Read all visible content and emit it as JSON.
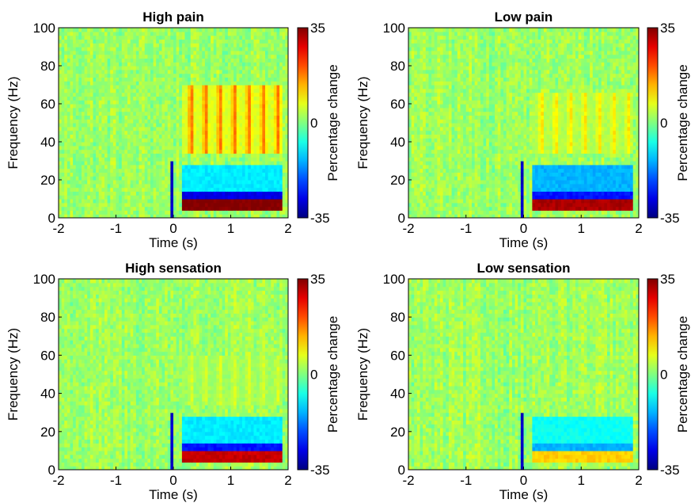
{
  "chart_data": [
    {
      "type": "heatmap",
      "title": "High pain",
      "xlabel": "Time (s)",
      "ylabel": "Frequency (Hz)",
      "xlim": [
        -2,
        2
      ],
      "ylim": [
        0,
        100
      ],
      "xticks": [
        -2,
        -1,
        0,
        1,
        2
      ],
      "yticks": [
        0,
        20,
        40,
        60,
        80,
        100
      ],
      "colorbar": {
        "label": "Percentage change",
        "range": [
          -35,
          35
        ],
        "ticks": [
          35,
          0,
          -35
        ],
        "colormap": "jet"
      },
      "features": [
        {
          "description": "strong increase",
          "time_range": [
            0.15,
            1.9
          ],
          "freq_range": [
            4,
            9
          ],
          "value": 35
        },
        {
          "description": "decrease band",
          "time_range": [
            0.15,
            1.9
          ],
          "freq_range": [
            10,
            14
          ],
          "value": -28
        },
        {
          "description": "gamma bursts",
          "time_range": [
            0.15,
            1.9
          ],
          "freq_range": [
            35,
            70
          ],
          "value": 18
        },
        {
          "description": "alpha/beta decrease",
          "time_range": [
            0.15,
            1.9
          ],
          "freq_range": [
            15,
            28
          ],
          "value": -10
        },
        {
          "description": "onset artifact",
          "time_range": [
            -0.05,
            0.0
          ],
          "freq_range": [
            0,
            30
          ],
          "value": -30
        }
      ]
    },
    {
      "type": "heatmap",
      "title": "Low pain",
      "xlabel": "Time (s)",
      "ylabel": "Frequency (Hz)",
      "xlim": [
        -2,
        2
      ],
      "ylim": [
        0,
        100
      ],
      "xticks": [
        -2,
        -1,
        0,
        1,
        2
      ],
      "yticks": [
        0,
        20,
        40,
        60,
        80,
        100
      ],
      "colorbar": {
        "label": "Percentage change",
        "range": [
          -35,
          35
        ],
        "ticks": [
          35,
          0,
          -35
        ],
        "colormap": "jet"
      },
      "features": [
        {
          "description": "strong increase",
          "time_range": [
            0.15,
            1.9
          ],
          "freq_range": [
            4,
            9
          ],
          "value": 32
        },
        {
          "description": "decrease band",
          "time_range": [
            0.15,
            1.9
          ],
          "freq_range": [
            10,
            14
          ],
          "value": -25
        },
        {
          "description": "gamma bursts",
          "time_range": [
            0.15,
            1.9
          ],
          "freq_range": [
            35,
            65
          ],
          "value": 10
        },
        {
          "description": "alpha/beta decrease",
          "time_range": [
            0.15,
            1.9
          ],
          "freq_range": [
            15,
            28
          ],
          "value": -14
        },
        {
          "description": "onset artifact",
          "time_range": [
            -0.05,
            0.0
          ],
          "freq_range": [
            0,
            30
          ],
          "value": -30
        }
      ]
    },
    {
      "type": "heatmap",
      "title": "High sensation",
      "xlabel": "Time (s)",
      "ylabel": "Frequency (Hz)",
      "xlim": [
        -2,
        2
      ],
      "ylim": [
        0,
        100
      ],
      "xticks": [
        -2,
        -1,
        0,
        1,
        2
      ],
      "yticks": [
        0,
        20,
        40,
        60,
        80,
        100
      ],
      "colorbar": {
        "label": "Percentage change",
        "range": [
          -35,
          35
        ],
        "ticks": [
          35,
          0,
          -35
        ],
        "colormap": "jet"
      },
      "features": [
        {
          "description": "strong increase",
          "time_range": [
            0.15,
            1.9
          ],
          "freq_range": [
            4,
            9
          ],
          "value": 30
        },
        {
          "description": "decrease band",
          "time_range": [
            0.15,
            1.9
          ],
          "freq_range": [
            10,
            14
          ],
          "value": -25
        },
        {
          "description": "gamma bursts",
          "time_range": [
            0.15,
            1.9
          ],
          "freq_range": [
            35,
            60
          ],
          "value": 6
        },
        {
          "description": "alpha/beta decrease",
          "time_range": [
            0.15,
            1.9
          ],
          "freq_range": [
            15,
            28
          ],
          "value": -10
        },
        {
          "description": "onset artifact",
          "time_range": [
            -0.05,
            0.0
          ],
          "freq_range": [
            0,
            30
          ],
          "value": -30
        }
      ]
    },
    {
      "type": "heatmap",
      "title": "Low sensation",
      "xlabel": "Time (s)",
      "ylabel": "Frequency (Hz)",
      "xlim": [
        -2,
        2
      ],
      "ylim": [
        0,
        100
      ],
      "xticks": [
        -2,
        -1,
        0,
        1,
        2
      ],
      "yticks": [
        0,
        20,
        40,
        60,
        80,
        100
      ],
      "colorbar": {
        "label": "Percentage change",
        "range": [
          -35,
          35
        ],
        "ticks": [
          35,
          0,
          -35
        ],
        "colormap": "jet"
      },
      "features": [
        {
          "description": "increase",
          "time_range": [
            0.15,
            1.9
          ],
          "freq_range": [
            4,
            9
          ],
          "value": 12
        },
        {
          "description": "decrease band",
          "time_range": [
            0.15,
            1.9
          ],
          "freq_range": [
            10,
            14
          ],
          "value": -14
        },
        {
          "description": "alpha/beta decrease",
          "time_range": [
            0.15,
            1.9
          ],
          "freq_range": [
            15,
            28
          ],
          "value": -8
        },
        {
          "description": "onset artifact",
          "time_range": [
            -0.05,
            0.0
          ],
          "freq_range": [
            0,
            30
          ],
          "value": -30
        }
      ]
    }
  ]
}
